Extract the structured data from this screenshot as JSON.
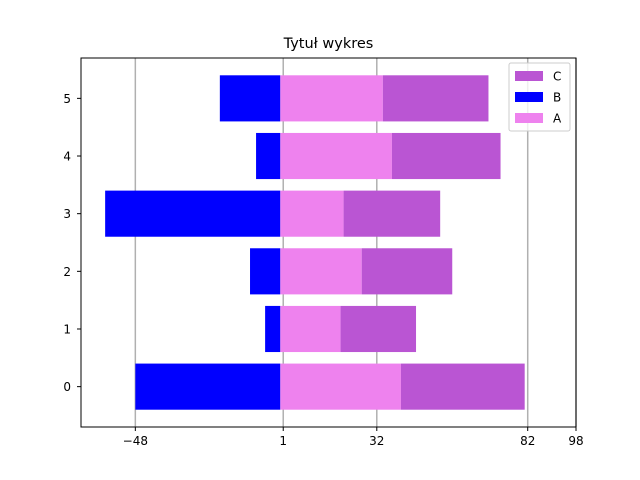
{
  "chart_data": {
    "type": "bar",
    "orientation": "horizontal",
    "stacked": true,
    "title": "Tytuł wykres",
    "xlabel": "",
    "ylabel": "",
    "categories": [
      "0",
      "1",
      "2",
      "3",
      "4",
      "5"
    ],
    "series": [
      {
        "name": "A",
        "color": "#ee82ee",
        "values": [
          40,
          20,
          27,
          21,
          37,
          34
        ]
      },
      {
        "name": "B",
        "color": "#0000ff",
        "values": [
          -48,
          -5,
          -10,
          -58,
          -8,
          -20
        ]
      },
      {
        "name": "C",
        "color": "#ba55d3",
        "values": [
          41,
          25,
          30,
          32,
          36,
          35
        ]
      }
    ],
    "xticks": [
      -48,
      1,
      32,
      82,
      98
    ],
    "xtick_labels": [
      "−48",
      "1",
      "32",
      "82",
      "98"
    ],
    "xlim": [
      -66,
      98
    ],
    "ylim": [
      -0.7,
      5.7
    ],
    "grid": "vertical at x ticks",
    "legend_order": [
      "C",
      "B",
      "A"
    ],
    "legend_position": "top-right"
  }
}
